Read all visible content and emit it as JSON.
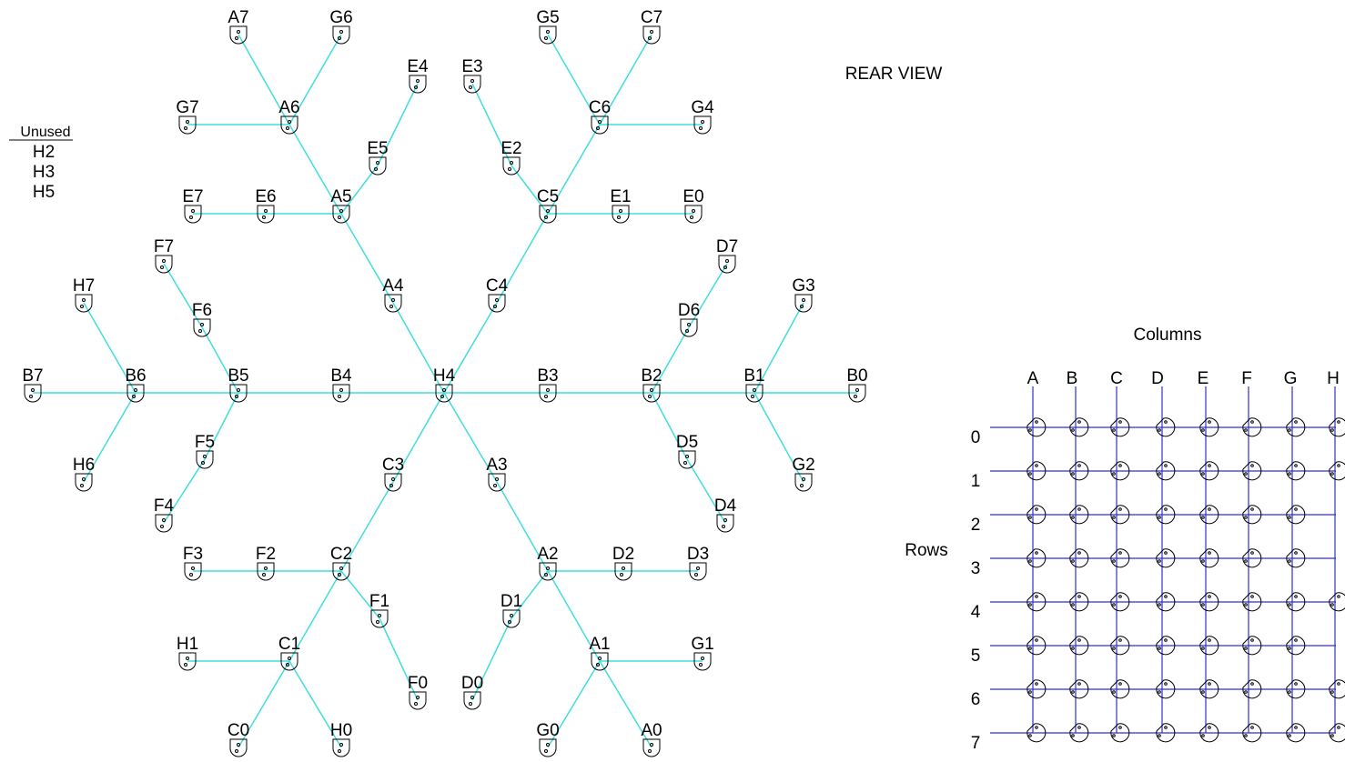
{
  "title": "REAR VIEW",
  "unused": {
    "heading": "Unused",
    "items": [
      "H2",
      "H3",
      "H5"
    ]
  },
  "nodes": [
    "A7",
    "G6",
    "G5",
    "C7",
    "E4",
    "E3",
    "G7",
    "A6",
    "C6",
    "G4",
    "E5",
    "E2",
    "E7",
    "E6",
    "A5",
    "C5",
    "E1",
    "E0",
    "F7",
    "D7",
    "H7",
    "A4",
    "C4",
    "G3",
    "F6",
    "D6",
    "B7",
    "B6",
    "B5",
    "B4",
    "H4",
    "B3",
    "B2",
    "B1",
    "B0",
    "F5",
    "D5",
    "H6",
    "C3",
    "A3",
    "G2",
    "F4",
    "D4",
    "F3",
    "F2",
    "C2",
    "A2",
    "D2",
    "D3",
    "F1",
    "D1",
    "H1",
    "C1",
    "A1",
    "G1",
    "F0",
    "D0",
    "C0",
    "H0",
    "G0",
    "A0"
  ],
  "grid": {
    "title": "Columns",
    "rows_label": "Rows",
    "columns": [
      "A",
      "B",
      "C",
      "D",
      "E",
      "F",
      "G",
      "H"
    ],
    "rows": [
      0,
      1,
      2,
      3,
      4,
      5,
      6,
      7
    ]
  }
}
